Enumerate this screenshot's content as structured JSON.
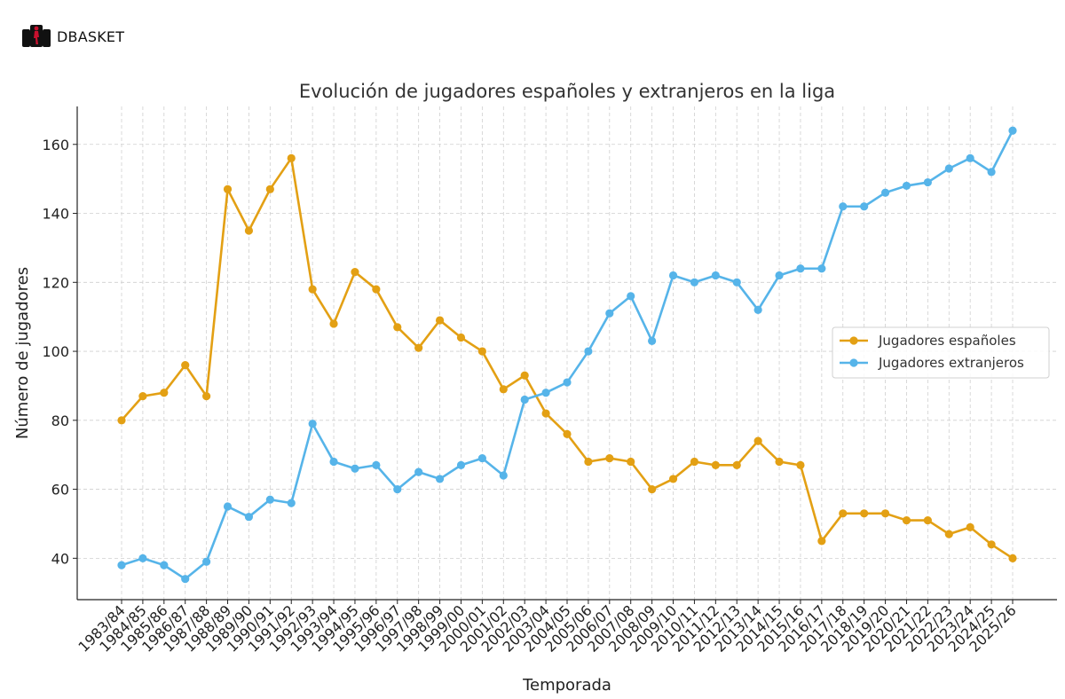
{
  "brand": {
    "name": "DBASKET",
    "logo_icon": "basketball-player-icon",
    "logo_color": "#c8102e"
  },
  "chart_data": {
    "type": "line",
    "title": "Evolución de jugadores españoles y extranjeros en la liga",
    "xlabel": "Temporada",
    "ylabel": "Número de jugadores",
    "ylim": [
      28,
      171
    ],
    "yticks": [
      40,
      60,
      80,
      100,
      120,
      140,
      160
    ],
    "grid": true,
    "legend_position": "center-right",
    "categories": [
      "1983/84",
      "1984/85",
      "1985/86",
      "1986/87",
      "1987/88",
      "1988/89",
      "1989/90",
      "1990/91",
      "1991/92",
      "1992/93",
      "1993/94",
      "1994/95",
      "1995/96",
      "1996/97",
      "1997/98",
      "1998/99",
      "1999/00",
      "2000/01",
      "2001/02",
      "2002/03",
      "2003/04",
      "2004/05",
      "2005/06",
      "2006/07",
      "2007/08",
      "2008/09",
      "2009/10",
      "2010/11",
      "2011/12",
      "2012/13",
      "2013/14",
      "2014/15",
      "2015/16",
      "2016/17",
      "2017/18",
      "2018/19",
      "2019/20",
      "2020/21",
      "2021/22",
      "2022/23",
      "2023/24",
      "2024/25",
      "2025/26"
    ],
    "series": [
      {
        "name": "Jugadores españoles",
        "color": "#E3A014",
        "values": [
          80,
          87,
          88,
          96,
          87,
          147,
          135,
          147,
          156,
          118,
          108,
          123,
          118,
          107,
          101,
          109,
          104,
          100,
          89,
          93,
          82,
          76,
          68,
          69,
          68,
          60,
          63,
          68,
          67,
          67,
          74,
          68,
          67,
          45,
          53,
          53,
          53,
          51,
          51,
          47,
          49,
          44,
          40
        ]
      },
      {
        "name": "Jugadores extranjeros",
        "color": "#56B4E9",
        "values": [
          38,
          40,
          38,
          34,
          39,
          55,
          52,
          57,
          56,
          79,
          68,
          66,
          67,
          60,
          65,
          63,
          67,
          69,
          64,
          86,
          88,
          91,
          100,
          111,
          116,
          103,
          122,
          120,
          122,
          120,
          112,
          122,
          124,
          124,
          142,
          142,
          146,
          148,
          149,
          153,
          156,
          152,
          164
        ]
      }
    ]
  }
}
